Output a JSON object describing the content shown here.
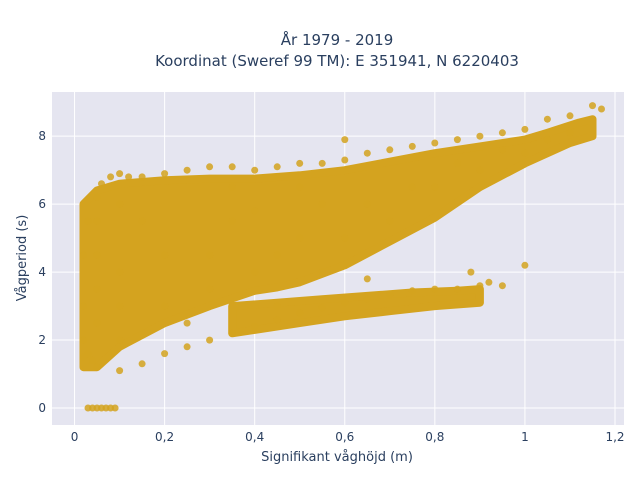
{
  "chart_data": {
    "type": "scatter",
    "title_line1": "År 1979 - 2019",
    "title_line2": "Koordinat (Sweref 99 TM): E 351941, N 6220403",
    "xlabel": "Signifikant våghöjd (m)",
    "ylabel": "Vågperiod (s)",
    "xlim": [
      -0.05,
      1.22
    ],
    "ylim": [
      -0.5,
      9.3
    ],
    "x_ticks": [
      0,
      0.2,
      0.4,
      0.6,
      0.8,
      1,
      1.2
    ],
    "x_tick_labels": [
      "0",
      "0,2",
      "0,4",
      "0,6",
      "0,8",
      "1",
      "1,2"
    ],
    "y_ticks": [
      0,
      2,
      4,
      6,
      8
    ],
    "y_tick_labels": [
      "0",
      "2",
      "4",
      "6",
      "8"
    ],
    "grid": true,
    "background_color": "#e5e5f0",
    "marker_color": "#d4a31f",
    "series": [
      {
        "points": [
          [
            0.02,
            1.5
          ],
          [
            0.02,
            2.0
          ],
          [
            0.02,
            3.0
          ],
          [
            0.02,
            4.5
          ],
          [
            0.03,
            5.5
          ],
          [
            0.03,
            1.6
          ],
          [
            0.04,
            1.4
          ],
          [
            0.05,
            1.2
          ],
          [
            0.05,
            6.2
          ],
          [
            0.06,
            6.6
          ],
          [
            0.08,
            6.8
          ],
          [
            0.1,
            6.9
          ],
          [
            0.12,
            6.8
          ],
          [
            0.05,
            0.0
          ],
          [
            0.06,
            0.0
          ],
          [
            0.07,
            0.0
          ],
          [
            0.08,
            0.0
          ],
          [
            0.09,
            0.0
          ],
          [
            0.04,
            0.0
          ],
          [
            0.03,
            0.0
          ],
          [
            0.1,
            1.1
          ],
          [
            0.15,
            1.3
          ],
          [
            0.2,
            1.6
          ],
          [
            0.25,
            1.8
          ],
          [
            0.3,
            2.0
          ],
          [
            0.35,
            2.2
          ],
          [
            0.4,
            2.4
          ],
          [
            0.45,
            2.6
          ],
          [
            0.5,
            2.8
          ],
          [
            0.55,
            2.95
          ],
          [
            0.6,
            3.1
          ],
          [
            0.65,
            3.2
          ],
          [
            0.7,
            3.35
          ],
          [
            0.75,
            3.45
          ],
          [
            0.8,
            3.5
          ],
          [
            0.85,
            3.5
          ],
          [
            0.9,
            3.6
          ],
          [
            0.92,
            3.7
          ],
          [
            0.95,
            3.6
          ],
          [
            0.15,
            6.8
          ],
          [
            0.2,
            6.9
          ],
          [
            0.25,
            7.0
          ],
          [
            0.3,
            7.1
          ],
          [
            0.35,
            7.1
          ],
          [
            0.4,
            7.0
          ],
          [
            0.45,
            7.1
          ],
          [
            0.5,
            7.2
          ],
          [
            0.55,
            7.2
          ],
          [
            0.6,
            7.3
          ],
          [
            0.65,
            7.5
          ],
          [
            0.7,
            7.6
          ],
          [
            0.75,
            7.7
          ],
          [
            0.8,
            7.8
          ],
          [
            0.85,
            7.9
          ],
          [
            0.9,
            8.0
          ],
          [
            0.95,
            8.1
          ],
          [
            1.0,
            8.2
          ],
          [
            1.05,
            8.5
          ],
          [
            1.1,
            8.6
          ],
          [
            1.15,
            8.9
          ],
          [
            1.17,
            8.8
          ],
          [
            1.0,
            4.2
          ],
          [
            0.6,
            7.9
          ],
          [
            0.88,
            4.0
          ],
          [
            0.4,
            4.0
          ],
          [
            0.5,
            5.0
          ],
          [
            0.3,
            3.5
          ],
          [
            0.7,
            5.5
          ],
          [
            0.8,
            6.5
          ],
          [
            0.9,
            7.0
          ],
          [
            1.0,
            7.5
          ],
          [
            0.6,
            5.0
          ],
          [
            0.2,
            4.5
          ],
          [
            0.1,
            3.0
          ],
          [
            0.15,
            5.5
          ],
          [
            0.35,
            5.5
          ],
          [
            0.45,
            4.5
          ],
          [
            0.55,
            6.0
          ],
          [
            0.65,
            6.0
          ],
          [
            0.75,
            6.5
          ],
          [
            0.85,
            7.2
          ],
          [
            0.95,
            7.6
          ],
          [
            1.05,
            7.9
          ],
          [
            1.1,
            8.1
          ],
          [
            0.25,
            2.5
          ],
          [
            0.45,
            3.0
          ],
          [
            0.65,
            3.8
          ],
          [
            0.35,
            6.5
          ],
          [
            0.5,
            6.5
          ],
          [
            0.05,
            2.5
          ],
          [
            0.05,
            3.5
          ],
          [
            0.05,
            4.5
          ],
          [
            0.05,
            5.5
          ],
          [
            0.1,
            2.0
          ],
          [
            0.1,
            4.0
          ],
          [
            0.1,
            6.0
          ],
          [
            0.2,
            3.0
          ],
          [
            0.3,
            4.5
          ],
          [
            0.4,
            5.8
          ],
          [
            0.55,
            4.0
          ]
        ]
      }
    ],
    "density_band": {
      "upper": [
        [
          0.02,
          6.0
        ],
        [
          0.05,
          6.4
        ],
        [
          0.1,
          6.6
        ],
        [
          0.2,
          6.7
        ],
        [
          0.3,
          6.75
        ],
        [
          0.4,
          6.75
        ],
        [
          0.5,
          6.85
        ],
        [
          0.6,
          7.0
        ],
        [
          0.7,
          7.25
        ],
        [
          0.8,
          7.5
        ],
        [
          0.9,
          7.7
        ],
        [
          1.0,
          7.9
        ],
        [
          1.05,
          8.1
        ],
        [
          1.12,
          8.4
        ],
        [
          1.15,
          8.5
        ]
      ],
      "lower": [
        [
          1.15,
          8.0
        ],
        [
          1.1,
          7.8
        ],
        [
          1.0,
          7.2
        ],
        [
          0.9,
          6.5
        ],
        [
          0.8,
          5.6
        ],
        [
          0.7,
          4.9
        ],
        [
          0.6,
          4.2
        ],
        [
          0.5,
          3.7
        ],
        [
          0.45,
          3.55
        ],
        [
          0.4,
          3.45
        ],
        [
          0.3,
          3.0
        ],
        [
          0.2,
          2.5
        ],
        [
          0.1,
          1.8
        ],
        [
          0.05,
          1.2
        ],
        [
          0.02,
          1.2
        ]
      ]
    },
    "lower_branch": {
      "upper": [
        [
          0.35,
          3.0
        ],
        [
          0.45,
          3.1
        ],
        [
          0.55,
          3.2
        ],
        [
          0.65,
          3.3
        ],
        [
          0.75,
          3.4
        ],
        [
          0.85,
          3.45
        ],
        [
          0.9,
          3.5
        ]
      ],
      "lower": [
        [
          0.9,
          3.1
        ],
        [
          0.8,
          3.0
        ],
        [
          0.7,
          2.85
        ],
        [
          0.6,
          2.7
        ],
        [
          0.5,
          2.5
        ],
        [
          0.4,
          2.3
        ],
        [
          0.35,
          2.2
        ]
      ]
    }
  }
}
